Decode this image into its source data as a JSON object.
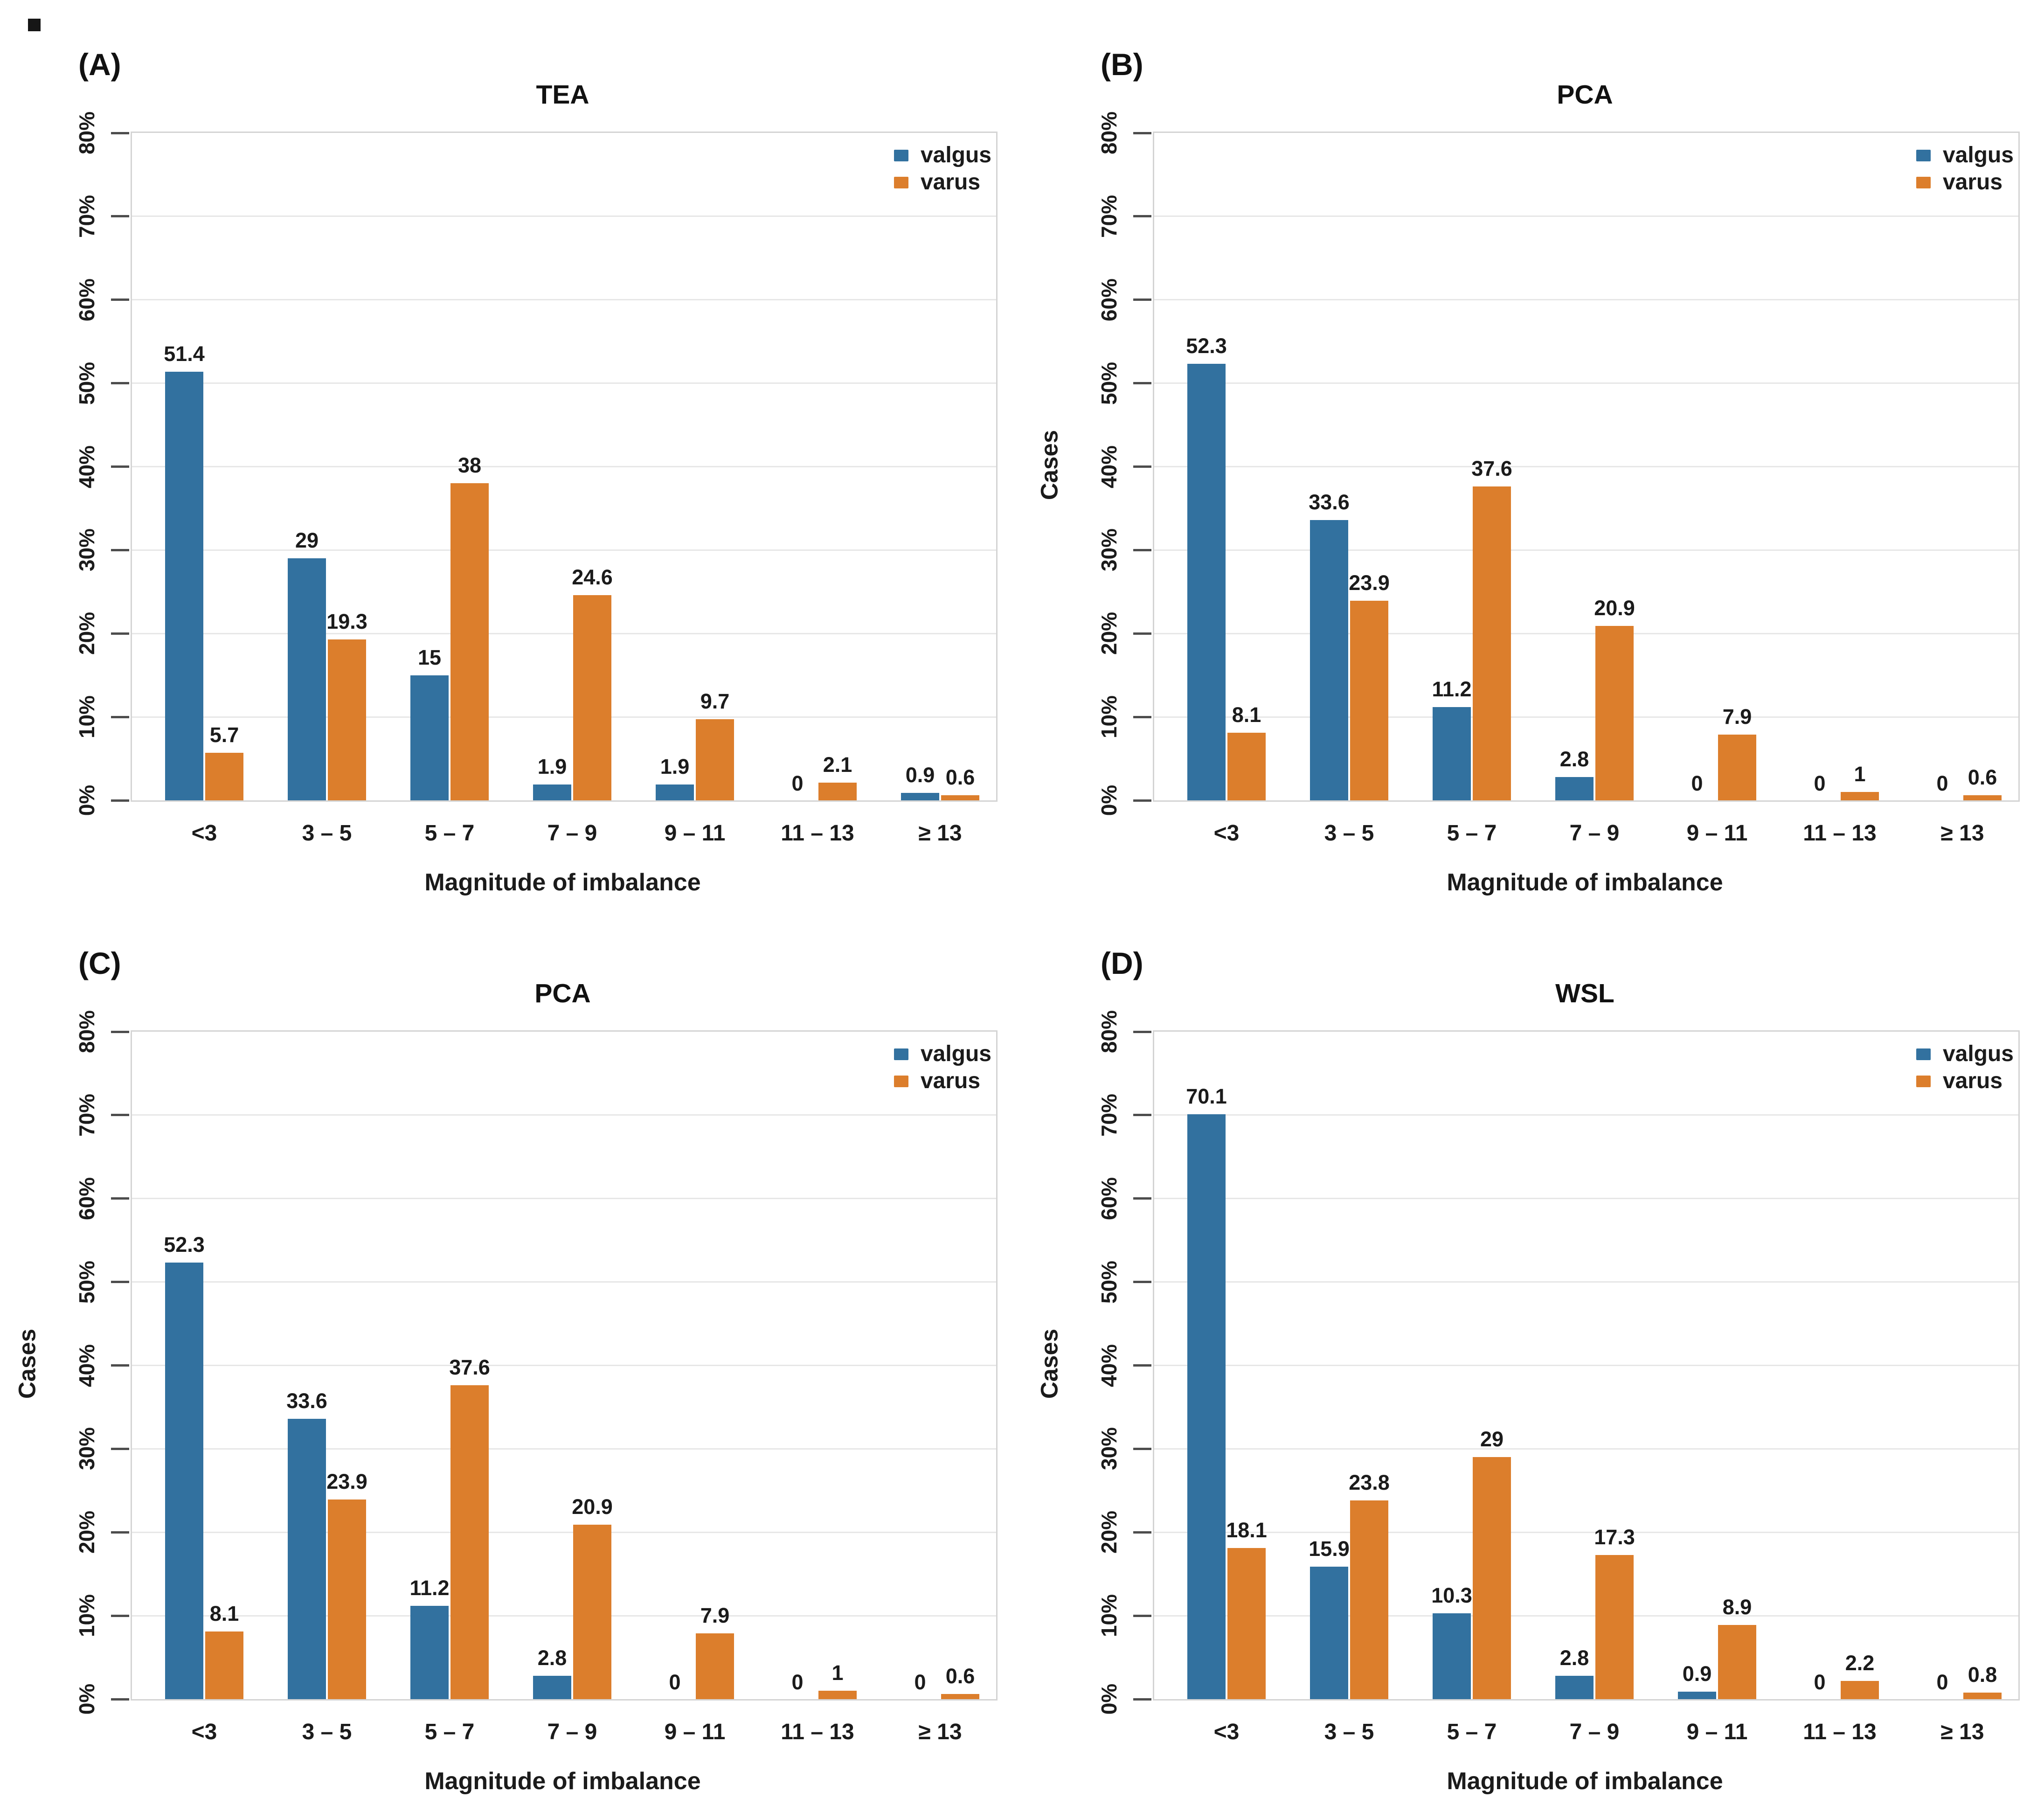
{
  "figure": {
    "background": "#ffffff",
    "colors": {
      "valgus": "#32719F",
      "varus": "#DC7E2C"
    },
    "grid_color": "#e7e7e7",
    "frame_color": "#d4d4d4",
    "tick_color": "#4d4d4d",
    "text_color": "#1b1b1b"
  },
  "chart_data": [
    {
      "type": "bar",
      "panel_label": "(A)",
      "title": "TEA",
      "xlabel": "Magnitude of imbalance",
      "ylabel": "",
      "ylim": [
        0,
        80
      ],
      "ytick_step": 10,
      "yticks": [
        "0%",
        "10%",
        "20%",
        "30%",
        "40%",
        "50%",
        "60%",
        "70%",
        "80%"
      ],
      "grid": true,
      "legend_position": "top-right",
      "categories": [
        "<3",
        "3 – 5",
        "5 – 7",
        "7 – 9",
        "9 – 11",
        "11 – 13",
        "≥ 13"
      ],
      "series": [
        {
          "name": "valgus",
          "values": [
            51.4,
            29,
            15,
            1.9,
            1.9,
            0,
            0.9
          ],
          "labels": [
            "51.4",
            "29",
            "15",
            "1.9",
            "1.9",
            "0",
            "0.9"
          ]
        },
        {
          "name": "varus",
          "values": [
            5.7,
            19.3,
            38,
            24.6,
            9.7,
            2.1,
            0.6
          ],
          "labels": [
            "5.7",
            "19.3",
            "38",
            "24.6",
            "9.7",
            "2.1",
            "0.6"
          ]
        }
      ]
    },
    {
      "type": "bar",
      "panel_label": "(B)",
      "title": "PCA",
      "xlabel": "Magnitude of imbalance",
      "ylabel": "Cases",
      "ylim": [
        0,
        80
      ],
      "ytick_step": 10,
      "yticks": [
        "0%",
        "10%",
        "20%",
        "30%",
        "40%",
        "50%",
        "60%",
        "70%",
        "80%"
      ],
      "grid": true,
      "legend_position": "top-right",
      "categories": [
        "<3",
        "3 – 5",
        "5 – 7",
        "7 – 9",
        "9 – 11",
        "11 – 13",
        "≥ 13"
      ],
      "series": [
        {
          "name": "valgus",
          "values": [
            52.3,
            33.6,
            11.2,
            2.8,
            0,
            0,
            0
          ],
          "labels": [
            "52.3",
            "33.6",
            "11.2",
            "2.8",
            "0",
            "0",
            "0"
          ]
        },
        {
          "name": "varus",
          "values": [
            8.1,
            23.9,
            37.6,
            20.9,
            7.9,
            1,
            0.6
          ],
          "labels": [
            "8.1",
            "23.9",
            "37.6",
            "20.9",
            "7.9",
            "1",
            "0.6"
          ]
        }
      ]
    },
    {
      "type": "bar",
      "panel_label": "(C)",
      "title": "PCA",
      "xlabel": "Magnitude of imbalance",
      "ylabel": "Cases",
      "ylim": [
        0,
        80
      ],
      "ytick_step": 10,
      "yticks": [
        "0%",
        "10%",
        "20%",
        "30%",
        "40%",
        "50%",
        "60%",
        "70%",
        "80%"
      ],
      "grid": true,
      "legend_position": "top-right",
      "categories": [
        "<3",
        "3 – 5",
        "5 – 7",
        "7 – 9",
        "9 – 11",
        "11 – 13",
        "≥ 13"
      ],
      "series": [
        {
          "name": "valgus",
          "values": [
            52.3,
            33.6,
            11.2,
            2.8,
            0,
            0,
            0
          ],
          "labels": [
            "52.3",
            "33.6",
            "11.2",
            "2.8",
            "0",
            "0",
            "0"
          ]
        },
        {
          "name": "varus",
          "values": [
            8.1,
            23.9,
            37.6,
            20.9,
            7.9,
            1,
            0.6
          ],
          "labels": [
            "8.1",
            "23.9",
            "37.6",
            "20.9",
            "7.9",
            "1",
            "0.6"
          ]
        }
      ]
    },
    {
      "type": "bar",
      "panel_label": "(D)",
      "title": "WSL",
      "xlabel": "Magnitude of imbalance",
      "ylabel": "Cases",
      "ylim": [
        0,
        80
      ],
      "ytick_step": 10,
      "yticks": [
        "0%",
        "10%",
        "20%",
        "30%",
        "40%",
        "50%",
        "60%",
        "70%",
        "80%"
      ],
      "grid": true,
      "legend_position": "top-right",
      "categories": [
        "<3",
        "3 – 5",
        "5 – 7",
        "7 – 9",
        "9 – 11",
        "11 – 13",
        "≥ 13"
      ],
      "series": [
        {
          "name": "valgus",
          "values": [
            70.1,
            15.9,
            10.3,
            2.8,
            0.9,
            0,
            0
          ],
          "labels": [
            "70.1",
            "15.9",
            "10.3",
            "2.8",
            "0.9",
            "0",
            "0"
          ]
        },
        {
          "name": "varus",
          "values": [
            18.1,
            23.8,
            29,
            17.3,
            8.9,
            2.2,
            0.8
          ],
          "labels": [
            "18.1",
            "23.8",
            "29",
            "17.3",
            "8.9",
            "2.2",
            "0.8"
          ]
        }
      ]
    }
  ]
}
